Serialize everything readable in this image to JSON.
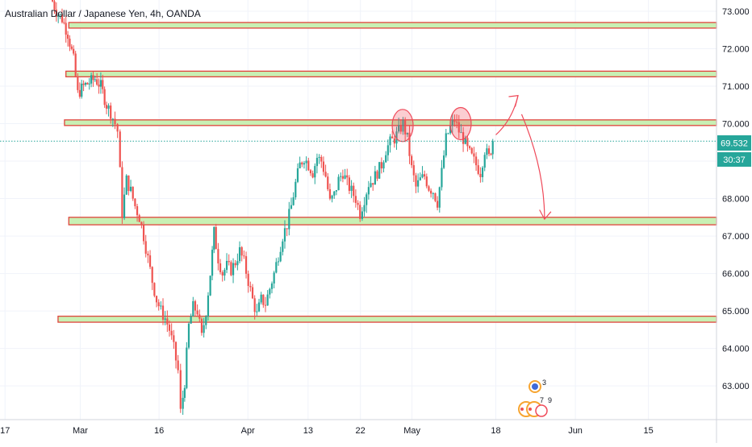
{
  "chart_data": {
    "type": "candlestick",
    "title": "Australian Dollar / Japanese Yen, 4h, OANDA",
    "ylim": [
      62.1,
      73.3
    ],
    "xlim": [
      0,
      100
    ],
    "x_ticks": [
      {
        "label": "17",
        "x": 0.7
      },
      {
        "label": "Mar",
        "x": 11.2
      },
      {
        "label": "16",
        "x": 22.2
      },
      {
        "label": "Apr",
        "x": 34.6
      },
      {
        "label": "13",
        "x": 43.0
      },
      {
        "label": "22",
        "x": 50.3
      },
      {
        "label": "May",
        "x": 57.5
      },
      {
        "label": "18",
        "x": 69.2
      },
      {
        "label": "Jun",
        "x": 80.3
      },
      {
        "label": "15",
        "x": 90.5
      }
    ],
    "y_ticks": [
      "63.000",
      "64.000",
      "65.000",
      "66.000",
      "67.000",
      "68.000",
      "69.000",
      "70.000",
      "71.000",
      "72.000",
      "73.000"
    ],
    "last_price": "69.532",
    "countdown": "30:37",
    "colors": {
      "up": "#26a69a",
      "down": "#ef5350",
      "zone_fill": "#c8f0b4",
      "zone_border": "#e0443c",
      "price_line": "#26a69a",
      "annotation": "#ef4a5a"
    },
    "series_path": [
      [
        7.2,
        73.4
      ],
      [
        8.0,
        73.0
      ],
      [
        8.8,
        72.8
      ],
      [
        9.6,
        72.4
      ],
      [
        10.4,
        71.7
      ],
      [
        11.0,
        70.8
      ],
      [
        11.8,
        71.0
      ],
      [
        12.6,
        71.1
      ],
      [
        13.4,
        71.2
      ],
      [
        14.2,
        71.0
      ],
      [
        15.0,
        70.5
      ],
      [
        15.6,
        70.3
      ],
      [
        16.2,
        70.0
      ],
      [
        16.6,
        69.8
      ],
      [
        17.2,
        67.6
      ],
      [
        17.8,
        68.5
      ],
      [
        18.4,
        68.2
      ],
      [
        19.0,
        67.8
      ],
      [
        19.6,
        67.5
      ],
      [
        20.2,
        67.0
      ],
      [
        20.8,
        66.4
      ],
      [
        21.4,
        65.8
      ],
      [
        22.0,
        65.3
      ],
      [
        22.6,
        65.0
      ],
      [
        23.2,
        64.8
      ],
      [
        23.8,
        64.5
      ],
      [
        24.4,
        64.0
      ],
      [
        25.0,
        63.4
      ],
      [
        25.4,
        62.3
      ],
      [
        25.9,
        63.1
      ],
      [
        26.5,
        64.6
      ],
      [
        27.1,
        65.1
      ],
      [
        27.7,
        65.0
      ],
      [
        28.3,
        64.3
      ],
      [
        28.9,
        65.0
      ],
      [
        29.5,
        66.0
      ],
      [
        30.0,
        67.1
      ],
      [
        30.6,
        66.4
      ],
      [
        31.2,
        66.0
      ],
      [
        31.8,
        66.2
      ],
      [
        32.4,
        66.1
      ],
      [
        33.0,
        66.3
      ],
      [
        33.6,
        66.6
      ],
      [
        34.2,
        66.3
      ],
      [
        34.8,
        65.8
      ],
      [
        35.4,
        65.3
      ],
      [
        36.0,
        64.9
      ],
      [
        36.6,
        65.3
      ],
      [
        37.2,
        65.2
      ],
      [
        37.8,
        65.6
      ],
      [
        38.4,
        66.0
      ],
      [
        39.0,
        66.5
      ],
      [
        39.6,
        67.0
      ],
      [
        40.2,
        67.3
      ],
      [
        40.8,
        67.8
      ],
      [
        41.4,
        68.4
      ],
      [
        42.0,
        68.9
      ],
      [
        42.6,
        69.1
      ],
      [
        43.2,
        68.9
      ],
      [
        43.8,
        68.7
      ],
      [
        44.4,
        69.1
      ],
      [
        45.0,
        69.0
      ],
      [
        45.6,
        68.6
      ],
      [
        46.2,
        67.9
      ],
      [
        46.8,
        68.1
      ],
      [
        47.4,
        68.5
      ],
      [
        48.0,
        68.7
      ],
      [
        48.6,
        68.4
      ],
      [
        49.2,
        68.2
      ],
      [
        49.8,
        68.0
      ],
      [
        50.4,
        67.6
      ],
      [
        51.0,
        68.0
      ],
      [
        51.6,
        68.4
      ],
      [
        52.2,
        68.5
      ],
      [
        52.8,
        68.7
      ],
      [
        53.4,
        68.9
      ],
      [
        54.0,
        69.3
      ],
      [
        54.6,
        69.5
      ],
      [
        55.2,
        69.6
      ],
      [
        55.8,
        69.8
      ],
      [
        56.4,
        70.0
      ],
      [
        57.0,
        69.6
      ],
      [
        57.6,
        68.8
      ],
      [
        58.2,
        68.3
      ],
      [
        58.8,
        68.5
      ],
      [
        59.4,
        68.6
      ],
      [
        60.0,
        68.3
      ],
      [
        60.6,
        68.2
      ],
      [
        61.2,
        67.9
      ],
      [
        61.8,
        68.7
      ],
      [
        62.4,
        69.6
      ],
      [
        63.0,
        69.9
      ],
      [
        63.6,
        70.1
      ],
      [
        64.2,
        69.8
      ],
      [
        64.8,
        69.6
      ],
      [
        65.4,
        69.3
      ],
      [
        66.0,
        69.1
      ],
      [
        66.6,
        68.9
      ],
      [
        67.2,
        68.7
      ],
      [
        67.8,
        69.3
      ],
      [
        68.4,
        69.1
      ],
      [
        68.9,
        69.532
      ]
    ],
    "zones": [
      {
        "x_start": 9.6,
        "x_end": 100,
        "y_low": 72.55,
        "y_high": 72.7
      },
      {
        "x_start": 9.2,
        "x_end": 100,
        "y_low": 71.25,
        "y_high": 71.4
      },
      {
        "x_start": 9.0,
        "x_end": 100,
        "y_low": 69.95,
        "y_high": 70.1
      },
      {
        "x_start": 9.6,
        "x_end": 100,
        "y_low": 67.3,
        "y_high": 67.5
      },
      {
        "x_start": 8.1,
        "x_end": 100,
        "y_low": 64.7,
        "y_high": 64.86
      }
    ],
    "top_circles": [
      {
        "x": 56.2,
        "y": 69.95
      },
      {
        "x": 64.3,
        "y": 70.0
      }
    ]
  }
}
